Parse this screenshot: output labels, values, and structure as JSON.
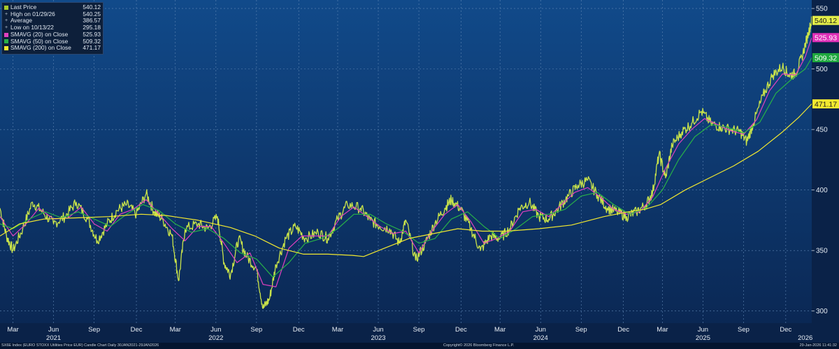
{
  "chart_data": {
    "type": "candlestick-line",
    "title": "SX6E Index (EURO STOXX Utilities Price EUR) Candle Chart Daily",
    "y_axis": {
      "position": "right",
      "ylim": [
        290,
        557
      ],
      "ticks": [
        300,
        350,
        400,
        450,
        500,
        550
      ]
    },
    "x_axis": {
      "month_labels": [
        "Mar",
        "Jun",
        "Sep",
        "Dec",
        "Mar",
        "Jun",
        "Sep",
        "Dec",
        "Mar",
        "Jun",
        "Sep",
        "Dec",
        "Mar",
        "Jun",
        "Sep",
        "Dec",
        "Mar",
        "Jun",
        "Sep",
        "Dec"
      ],
      "month_label_times": [
        2021.16,
        2021.41,
        2021.66,
        2021.92,
        2022.16,
        2022.41,
        2022.66,
        2022.92,
        2023.16,
        2023.41,
        2023.66,
        2023.92,
        2024.16,
        2024.41,
        2024.66,
        2024.92,
        2025.16,
        2025.41,
        2025.66,
        2025.92
      ],
      "year_labels": [
        "2021",
        "2022",
        "2023",
        "2024",
        "2025",
        "2026"
      ],
      "year_label_times": [
        2021.41,
        2022.41,
        2023.41,
        2024.41,
        2025.41,
        2026.04
      ],
      "range": [
        2021.08,
        2026.08
      ]
    },
    "series": [
      {
        "name": "Last Price",
        "color": "#c9e34a",
        "points": [
          [
            2021.08,
            385
          ],
          [
            2021.12,
            362
          ],
          [
            2021.16,
            350
          ],
          [
            2021.22,
            368
          ],
          [
            2021.28,
            390
          ],
          [
            2021.34,
            382
          ],
          [
            2021.41,
            372
          ],
          [
            2021.48,
            378
          ],
          [
            2021.55,
            390
          ],
          [
            2021.62,
            376
          ],
          [
            2021.68,
            358
          ],
          [
            2021.74,
            372
          ],
          [
            2021.8,
            383
          ],
          [
            2021.86,
            388
          ],
          [
            2021.92,
            380
          ],
          [
            2021.98,
            397
          ],
          [
            2022.03,
            382
          ],
          [
            2022.08,
            376
          ],
          [
            2022.14,
            362
          ],
          [
            2022.18,
            325
          ],
          [
            2022.22,
            368
          ],
          [
            2022.3,
            372
          ],
          [
            2022.36,
            368
          ],
          [
            2022.42,
            378
          ],
          [
            2022.46,
            340
          ],
          [
            2022.5,
            330
          ],
          [
            2022.55,
            360
          ],
          [
            2022.6,
            345
          ],
          [
            2022.66,
            335
          ],
          [
            2022.7,
            302
          ],
          [
            2022.74,
            310
          ],
          [
            2022.78,
            338
          ],
          [
            2022.84,
            360
          ],
          [
            2022.9,
            370
          ],
          [
            2022.96,
            360
          ],
          [
            2023.04,
            365
          ],
          [
            2023.1,
            360
          ],
          [
            2023.16,
            376
          ],
          [
            2023.22,
            388
          ],
          [
            2023.3,
            385
          ],
          [
            2023.36,
            375
          ],
          [
            2023.42,
            370
          ],
          [
            2023.48,
            368
          ],
          [
            2023.54,
            356
          ],
          [
            2023.58,
            375
          ],
          [
            2023.64,
            342
          ],
          [
            2023.7,
            356
          ],
          [
            2023.76,
            373
          ],
          [
            2023.82,
            385
          ],
          [
            2023.86,
            392
          ],
          [
            2023.92,
            384
          ],
          [
            2023.98,
            368
          ],
          [
            2024.04,
            350
          ],
          [
            2024.1,
            362
          ],
          [
            2024.16,
            360
          ],
          [
            2024.22,
            368
          ],
          [
            2024.28,
            385
          ],
          [
            2024.34,
            390
          ],
          [
            2024.4,
            378
          ],
          [
            2024.46,
            376
          ],
          [
            2024.52,
            385
          ],
          [
            2024.58,
            395
          ],
          [
            2024.64,
            404
          ],
          [
            2024.7,
            408
          ],
          [
            2024.76,
            396
          ],
          [
            2024.82,
            385
          ],
          [
            2024.88,
            382
          ],
          [
            2024.94,
            378
          ],
          [
            2025.0,
            382
          ],
          [
            2025.06,
            388
          ],
          [
            2025.1,
            398
          ],
          [
            2025.14,
            430
          ],
          [
            2025.18,
            410
          ],
          [
            2025.22,
            437
          ],
          [
            2025.28,
            448
          ],
          [
            2025.34,
            455
          ],
          [
            2025.4,
            465
          ],
          [
            2025.46,
            455
          ],
          [
            2025.52,
            452
          ],
          [
            2025.58,
            450
          ],
          [
            2025.64,
            448
          ],
          [
            2025.68,
            440
          ],
          [
            2025.72,
            455
          ],
          [
            2025.78,
            478
          ],
          [
            2025.84,
            495
          ],
          [
            2025.9,
            502
          ],
          [
            2025.94,
            495
          ],
          [
            2025.98,
            496
          ],
          [
            2026.02,
            510
          ],
          [
            2026.06,
            530
          ],
          [
            2026.08,
            540
          ]
        ]
      },
      {
        "name": "SMAVG (20) on Close",
        "color": "#e040c0",
        "points": [
          [
            2021.08,
            378
          ],
          [
            2021.16,
            362
          ],
          [
            2021.24,
            372
          ],
          [
            2021.32,
            385
          ],
          [
            2021.41,
            376
          ],
          [
            2021.5,
            377
          ],
          [
            2021.58,
            386
          ],
          [
            2021.66,
            372
          ],
          [
            2021.74,
            366
          ],
          [
            2021.82,
            380
          ],
          [
            2021.9,
            384
          ],
          [
            2021.98,
            392
          ],
          [
            2022.06,
            380
          ],
          [
            2022.14,
            368
          ],
          [
            2022.22,
            358
          ],
          [
            2022.3,
            370
          ],
          [
            2022.38,
            370
          ],
          [
            2022.46,
            356
          ],
          [
            2022.54,
            340
          ],
          [
            2022.62,
            348
          ],
          [
            2022.7,
            322
          ],
          [
            2022.78,
            320
          ],
          [
            2022.86,
            352
          ],
          [
            2022.94,
            362
          ],
          [
            2023.02,
            362
          ],
          [
            2023.1,
            362
          ],
          [
            2023.18,
            378
          ],
          [
            2023.26,
            386
          ],
          [
            2023.34,
            378
          ],
          [
            2023.42,
            370
          ],
          [
            2023.5,
            364
          ],
          [
            2023.58,
            366
          ],
          [
            2023.66,
            348
          ],
          [
            2023.74,
            366
          ],
          [
            2023.82,
            380
          ],
          [
            2023.9,
            388
          ],
          [
            2023.98,
            374
          ],
          [
            2024.06,
            356
          ],
          [
            2024.14,
            360
          ],
          [
            2024.22,
            366
          ],
          [
            2024.3,
            382
          ],
          [
            2024.38,
            384
          ],
          [
            2024.46,
            378
          ],
          [
            2024.54,
            388
          ],
          [
            2024.62,
            398
          ],
          [
            2024.7,
            402
          ],
          [
            2024.78,
            394
          ],
          [
            2024.86,
            384
          ],
          [
            2024.94,
            380
          ],
          [
            2025.02,
            382
          ],
          [
            2025.1,
            394
          ],
          [
            2025.18,
            418
          ],
          [
            2025.26,
            438
          ],
          [
            2025.34,
            450
          ],
          [
            2025.42,
            459
          ],
          [
            2025.5,
            454
          ],
          [
            2025.58,
            449
          ],
          [
            2025.66,
            446
          ],
          [
            2025.74,
            458
          ],
          [
            2025.82,
            482
          ],
          [
            2025.9,
            496
          ],
          [
            2025.98,
            495
          ],
          [
            2026.04,
            510
          ],
          [
            2026.08,
            525.93
          ]
        ]
      },
      {
        "name": "SMAVG (50) on Close",
        "color": "#28b048",
        "points": [
          [
            2021.08,
            372
          ],
          [
            2021.16,
            368
          ],
          [
            2021.26,
            376
          ],
          [
            2021.36,
            382
          ],
          [
            2021.46,
            377
          ],
          [
            2021.56,
            382
          ],
          [
            2021.66,
            376
          ],
          [
            2021.76,
            370
          ],
          [
            2021.86,
            380
          ],
          [
            2021.96,
            388
          ],
          [
            2022.06,
            383
          ],
          [
            2022.16,
            372
          ],
          [
            2022.26,
            365
          ],
          [
            2022.36,
            368
          ],
          [
            2022.46,
            360
          ],
          [
            2022.56,
            348
          ],
          [
            2022.66,
            343
          ],
          [
            2022.76,
            328
          ],
          [
            2022.86,
            340
          ],
          [
            2022.96,
            356
          ],
          [
            2023.06,
            360
          ],
          [
            2023.16,
            368
          ],
          [
            2023.26,
            380
          ],
          [
            2023.36,
            380
          ],
          [
            2023.46,
            372
          ],
          [
            2023.56,
            366
          ],
          [
            2023.66,
            356
          ],
          [
            2023.76,
            360
          ],
          [
            2023.86,
            376
          ],
          [
            2023.96,
            382
          ],
          [
            2024.06,
            370
          ],
          [
            2024.16,
            360
          ],
          [
            2024.26,
            368
          ],
          [
            2024.36,
            378
          ],
          [
            2024.46,
            380
          ],
          [
            2024.56,
            384
          ],
          [
            2024.66,
            395
          ],
          [
            2024.76,
            398
          ],
          [
            2024.86,
            388
          ],
          [
            2024.96,
            380
          ],
          [
            2025.06,
            385
          ],
          [
            2025.16,
            400
          ],
          [
            2025.26,
            425
          ],
          [
            2025.36,
            444
          ],
          [
            2025.46,
            454
          ],
          [
            2025.56,
            452
          ],
          [
            2025.66,
            447
          ],
          [
            2025.76,
            456
          ],
          [
            2025.86,
            480
          ],
          [
            2025.96,
            492
          ],
          [
            2026.04,
            500
          ],
          [
            2026.08,
            509.32
          ]
        ]
      },
      {
        "name": "SMAVG (200) on Close",
        "color": "#f2e830",
        "points": [
          [
            2021.08,
            362
          ],
          [
            2021.2,
            372
          ],
          [
            2021.35,
            376
          ],
          [
            2021.55,
            377
          ],
          [
            2021.75,
            378
          ],
          [
            2021.95,
            380
          ],
          [
            2022.1,
            379
          ],
          [
            2022.3,
            375
          ],
          [
            2022.5,
            369
          ],
          [
            2022.65,
            362
          ],
          [
            2022.8,
            352
          ],
          [
            2022.95,
            347
          ],
          [
            2023.1,
            347
          ],
          [
            2023.25,
            346
          ],
          [
            2023.32,
            345
          ],
          [
            2023.45,
            352
          ],
          [
            2023.6,
            360
          ],
          [
            2023.75,
            364
          ],
          [
            2023.9,
            368
          ],
          [
            2024.05,
            366
          ],
          [
            2024.2,
            366
          ],
          [
            2024.4,
            368
          ],
          [
            2024.6,
            371
          ],
          [
            2024.8,
            378
          ],
          [
            2024.95,
            382
          ],
          [
            2025.05,
            384
          ],
          [
            2025.15,
            388
          ],
          [
            2025.3,
            400
          ],
          [
            2025.45,
            410
          ],
          [
            2025.6,
            420
          ],
          [
            2025.75,
            432
          ],
          [
            2025.9,
            448
          ],
          [
            2026.0,
            460
          ],
          [
            2026.08,
            471.17
          ]
        ]
      }
    ]
  },
  "legend": [
    {
      "marker": "swatch",
      "color": "#a8c92c",
      "label": "Last Price",
      "value": "540.12"
    },
    {
      "marker": "symbol",
      "symbol": "+",
      "label": "High on 01/29/26",
      "value": "540.25"
    },
    {
      "marker": "symbol",
      "symbol": "+",
      "label": "Average",
      "value": "386.57"
    },
    {
      "marker": "symbol",
      "symbol": "+",
      "label": "Low on 10/13/22",
      "value": "295.18"
    },
    {
      "marker": "swatch",
      "color": "#e040c0",
      "label": "SMAVG (20)  on Close",
      "value": "525.93"
    },
    {
      "marker": "swatch",
      "color": "#28b048",
      "label": "SMAVG (50)  on Close",
      "value": "509.32"
    },
    {
      "marker": "swatch",
      "color": "#f2e830",
      "label": "SMAVG (200)  on Close",
      "value": "471.17"
    }
  ],
  "price_tags": [
    {
      "label": "540.12",
      "value": 540.12,
      "bg": "#e2ec48",
      "fg": "#1a1a1a"
    },
    {
      "label": "525.93",
      "value": 525.93,
      "bg": "#e030b8",
      "fg": "#ffffff"
    },
    {
      "label": "509.32",
      "value": 509.32,
      "bg": "#1ea83e",
      "fg": "#ffffff"
    },
    {
      "label": "471.17",
      "value": 471.17,
      "bg": "#f2e830",
      "fg": "#1a1a1a"
    }
  ],
  "footer": {
    "left": "SX6E Index (EURO STOXX Utilities Price EUR) Candle Chart Daily 30JAN2021-29JAN2026",
    "center": "Copyright© 2026 Bloomberg Finance L.P.",
    "right": "29-Jan-2026 11:41:32"
  }
}
